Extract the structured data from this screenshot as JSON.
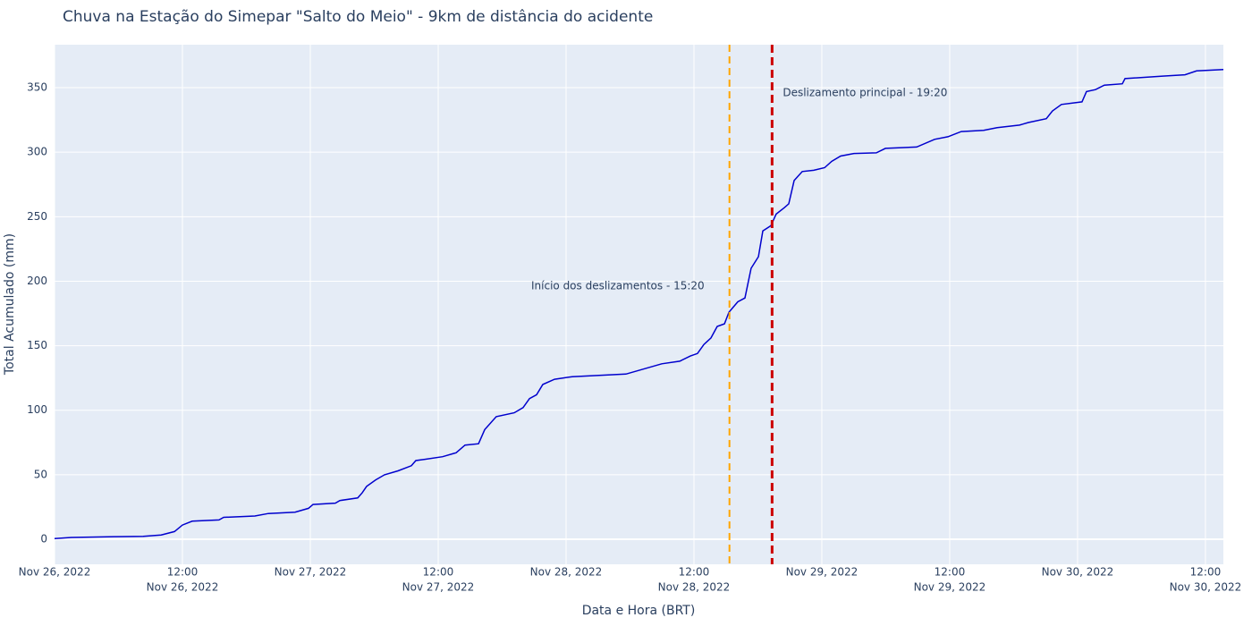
{
  "chart_data": {
    "type": "line",
    "title": "Chuva na Estação do Simepar \"Salto do Meio\" - 9km de distância do acidente",
    "xlabel": "Data e Hora (BRT)",
    "ylabel": "Total Acumulado (mm)",
    "color": "#0000cd",
    "x": [
      "2022-11-26 00:00",
      "2022-11-26 01:35",
      "2022-11-26 05:47",
      "2022-11-26 08:19",
      "2022-11-26 10:00",
      "2022-11-26 11:15",
      "2022-11-26 12:00",
      "2022-11-26 12:55",
      "2022-11-26 15:26",
      "2022-11-26 15:52",
      "2022-11-26 18:48",
      "2022-11-26 20:04",
      "2022-11-26 22:34",
      "2022-11-26 23:50",
      "2022-11-27 00:15",
      "2022-11-27 02:21",
      "2022-11-27 02:46",
      "2022-11-27 04:27",
      "2022-11-27 04:52",
      "2022-11-27 05:17",
      "2022-11-27 06:08",
      "2022-11-27 06:58",
      "2022-11-27 08:14",
      "2022-11-27 09:29",
      "2022-11-27 09:54",
      "2022-11-27 10:45",
      "2022-11-27 12:25",
      "2022-11-27 13:41",
      "2022-11-27 14:31",
      "2022-11-27 15:47",
      "2022-11-27 16:22",
      "2022-11-27 17:27",
      "2022-11-27 19:08",
      "2022-11-27 19:58",
      "2022-11-27 20:34",
      "2022-11-27 21:14",
      "2022-11-27 21:49",
      "2022-11-27 22:55",
      "2022-11-28 00:35",
      "2022-11-28 05:37",
      "2022-11-28 08:59",
      "2022-11-28 10:40",
      "2022-11-28 11:40",
      "2022-11-28 12:20",
      "2022-11-28 12:56",
      "2022-11-28 13:36",
      "2022-11-28 14:11",
      "2022-11-28 14:52",
      "2022-11-28 15:17",
      "2022-11-28 16:07",
      "2022-11-28 16:47",
      "2022-11-28 17:22",
      "2022-11-28 18:03",
      "2022-11-28 18:28",
      "2022-11-28 19:13",
      "2022-11-28 19:43",
      "2022-11-28 20:29",
      "2022-11-28 20:54",
      "2022-11-28 21:24",
      "2022-11-28 22:10",
      "2022-11-28 23:15",
      "2022-11-29 00:16",
      "2022-11-29 00:56",
      "2022-11-29 01:46",
      "2022-11-29 03:01",
      "2022-11-29 05:07",
      "2022-11-29 05:58",
      "2022-11-29 08:54",
      "2022-11-29 10:35",
      "2022-11-29 11:50",
      "2022-11-29 13:05",
      "2022-11-29 15:11",
      "2022-11-29 16:27",
      "2022-11-29 18:33",
      "2022-11-29 19:23",
      "2022-11-29 21:04",
      "2022-11-29 21:39",
      "2022-11-29 22:29",
      "2022-11-30 00:25",
      "2022-11-30 00:50",
      "2022-11-30 01:41",
      "2022-11-30 02:31",
      "2022-11-30 04:12",
      "2022-11-30 04:27",
      "2022-11-30 07:59",
      "2022-11-30 10:05",
      "2022-11-30 11:10",
      "2022-11-30 13:41"
    ],
    "values": [
      0.5,
      1.4,
      2,
      2.2,
      3.3,
      6,
      11,
      14,
      15,
      17,
      18,
      20,
      21,
      24,
      27,
      28,
      30,
      32,
      36,
      41,
      46,
      50,
      53,
      57,
      61,
      62,
      64,
      67,
      73,
      74,
      85,
      95,
      98,
      102,
      109,
      112,
      120,
      124,
      126,
      128,
      136,
      138,
      142,
      144,
      151,
      156,
      165,
      167,
      176,
      184,
      187,
      210,
      219,
      239,
      243,
      252,
      257,
      260,
      278,
      285,
      286,
      288,
      293,
      297,
      299,
      299.5,
      303,
      304,
      310,
      312,
      316,
      317,
      319,
      321,
      323,
      326,
      332,
      337,
      339,
      347,
      348.5,
      352,
      353,
      357,
      359,
      360,
      363,
      364
    ],
    "xlim": [
      "2022-11-26 00:00",
      "2022-11-30 13:41"
    ],
    "ylim": [
      -19.4,
      383.3
    ],
    "yticks": [
      0,
      50,
      100,
      150,
      200,
      250,
      300,
      350
    ],
    "xticks": [
      {
        "value": "2022-11-26 00:00",
        "label": [
          "Nov 26, 2022"
        ]
      },
      {
        "value": "2022-11-26 12:00",
        "label": [
          "12:00",
          "Nov 26, 2022"
        ]
      },
      {
        "value": "2022-11-27 00:00",
        "label": [
          "Nov 27, 2022"
        ]
      },
      {
        "value": "2022-11-27 12:00",
        "label": [
          "12:00",
          "Nov 27, 2022"
        ]
      },
      {
        "value": "2022-11-28 00:00",
        "label": [
          "Nov 28, 2022"
        ]
      },
      {
        "value": "2022-11-28 12:00",
        "label": [
          "12:00",
          "Nov 28, 2022"
        ]
      },
      {
        "value": "2022-11-29 00:00",
        "label": [
          "Nov 29, 2022"
        ]
      },
      {
        "value": "2022-11-29 12:00",
        "label": [
          "12:00",
          "Nov 29, 2022"
        ]
      },
      {
        "value": "2022-11-30 00:00",
        "label": [
          "Nov 30, 2022"
        ]
      },
      {
        "value": "2022-11-30 12:00",
        "label": [
          "12:00",
          "Nov 30, 2022"
        ]
      }
    ],
    "grid": true,
    "vlines": [
      {
        "x": "2022-11-28 15:20",
        "color": "#ffa500",
        "label": "Início dos deslizamentos - 15:20"
      },
      {
        "x": "2022-11-28 19:20",
        "color": "#cc0000",
        "label": "Deslizamento principal - 19:20"
      }
    ]
  }
}
